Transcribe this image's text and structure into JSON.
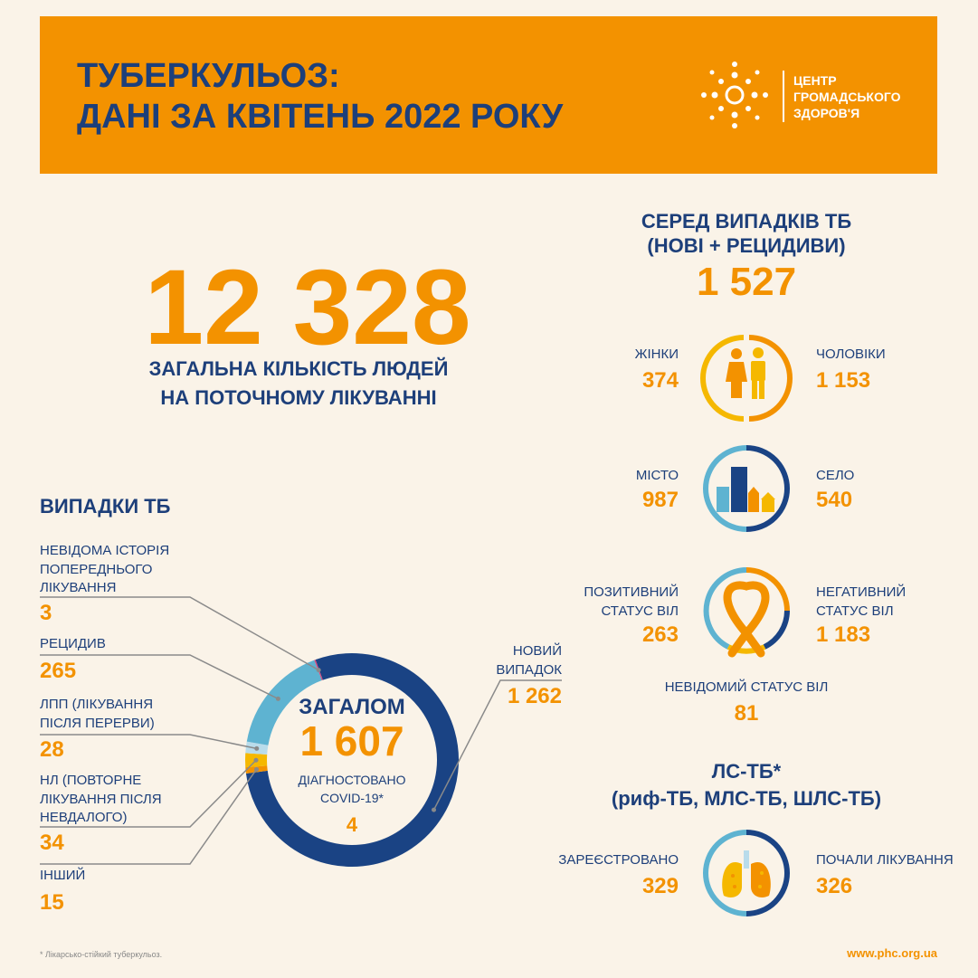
{
  "header": {
    "title": "ТУБЕРКУЛЬОЗ:\nДАНІ ЗА КВІТЕНЬ 2022 РОКУ",
    "logo_text": "ЦЕНТР\nГРОМАДСЬКОГО\nЗДОРОВ'Я"
  },
  "total": {
    "value": "12 328",
    "label": "ЗАГАЛЬНА КІЛЬКІСТЬ ЛЮДЕЙ\nНА ПОТОЧНОМУ ЛІКУВАННІ"
  },
  "chart_data": {
    "type": "donut",
    "title": "ВИПАДКИ ТБ",
    "categories": [
      "НОВИЙ\nВИПАДОК",
      "ІНШИЙ",
      "НЛ (ПОВТОРНЕ\nЛІКУВАННЯ ПІСЛЯ\nНЕВДАЛОГО)",
      "ЛПП (ЛІКУВАННЯ\nПІСЛЯ ПЕРЕРВИ)",
      "РЕЦИДИВ",
      "НЕВІДОМА ІСТОРІЯ\nПОПЕРЕДНЬОГО\nЛІКУВАННЯ"
    ],
    "values": [
      1262,
      15,
      34,
      28,
      265,
      3
    ],
    "value_labels": [
      "1 262",
      "15",
      "34",
      "28",
      "265",
      "3"
    ],
    "colors": [
      "#1a4384",
      "#f39200",
      "#f5b800",
      "#b9dceb",
      "#5eb3d1",
      "#d6467e"
    ]
  },
  "donut_center": {
    "label": "ЗАГАЛОМ",
    "total": "1 607",
    "covid_label": "ДІАГНОСТОВАНО\nCOVID-19*",
    "covid_value": "4"
  },
  "tb_cases": {
    "title": "СЕРЕД ВИПАДКІВ ТБ\n(НОВІ + РЕЦИДИВИ)",
    "total": "1 527",
    "rows": [
      {
        "left_label": "ЖІНКИ",
        "left_value": "374",
        "right_label": "ЧОЛОВІКИ",
        "right_value": "1 153"
      },
      {
        "left_label": "МІСТО",
        "left_value": "987",
        "right_label": "СЕЛО",
        "right_value": "540"
      },
      {
        "left_label": "ПОЗИТИВНИЙ\nСТАТУС ВІЛ",
        "left_value": "263",
        "right_label": "НЕГАТИВНИЙ\nСТАТУС  ВІЛ",
        "right_value": "1 183"
      }
    ],
    "unknown_label": "НЕВІДОМИЙ СТАТУС ВІЛ",
    "unknown_value": "81"
  },
  "mdr": {
    "title": "ЛС-ТБ*\n(риф-ТБ, МЛС-ТБ, ШЛС-ТБ)",
    "left_label": "ЗАРЕЄСТРОВАНО",
    "left_value": "329",
    "right_label": "ПОЧАЛИ ЛІКУВАННЯ",
    "right_value": "326"
  },
  "footnote": "* Лікарсько-стійкий туберкульоз.",
  "url": "www.phc.org.ua"
}
